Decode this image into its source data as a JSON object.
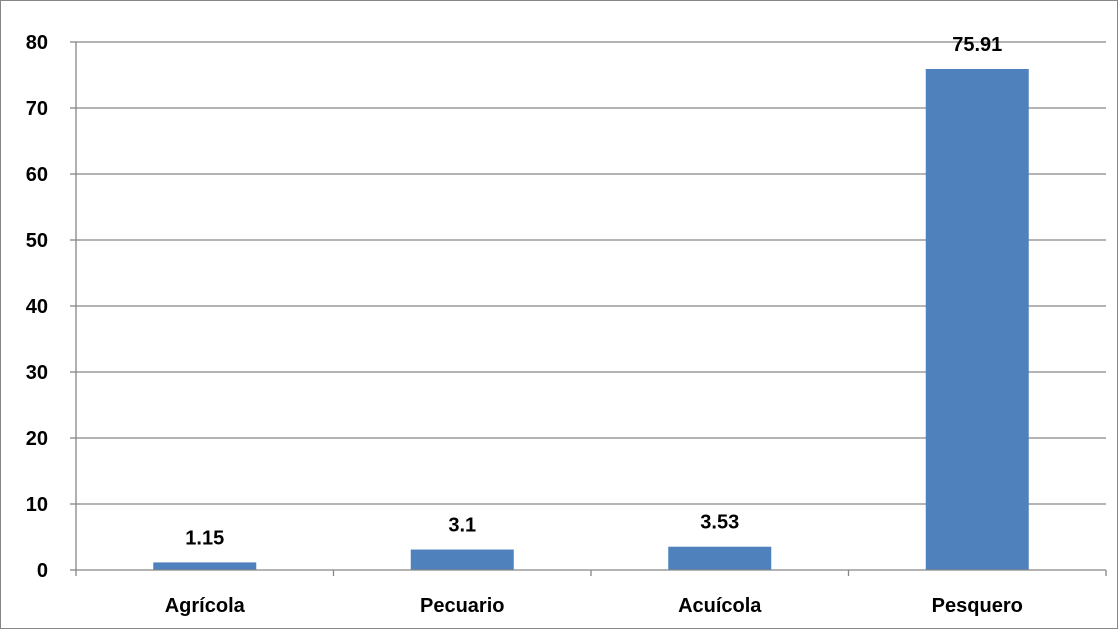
{
  "chart_data": {
    "type": "bar",
    "title": "",
    "xlabel": "",
    "ylabel": "",
    "categories": [
      "Agrícola",
      "Pecuario",
      "Acuícola",
      "Pesquero"
    ],
    "values": [
      1.15,
      3.1,
      3.53,
      75.91
    ],
    "value_labels": [
      "1.15",
      "3.1",
      "3.53",
      "75.91"
    ],
    "ylim": [
      0,
      80
    ],
    "yticks": [
      0,
      10,
      20,
      30,
      40,
      50,
      60,
      70,
      80
    ],
    "grid": true,
    "legend": "none",
    "colors": {
      "bar": "#4F81BD",
      "gridline": "#868686",
      "axis": "#868686",
      "text": "#000000"
    }
  }
}
